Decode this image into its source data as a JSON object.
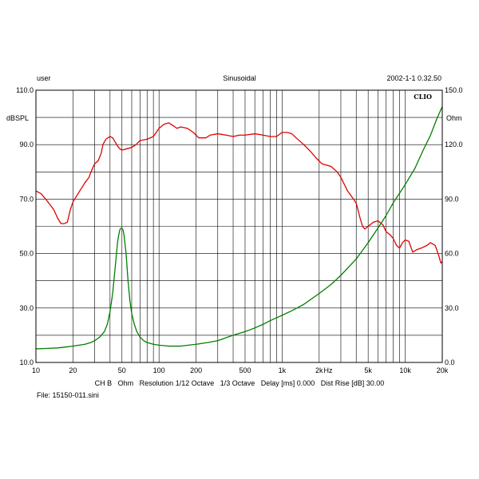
{
  "header": {
    "left": "user",
    "center": "Sinusoidal",
    "right": "2002-1-1 0.32.50",
    "brand": "CLIO"
  },
  "footer": {
    "settings": "CH B   Ohm   Resolution 1/12 Octave   1/3 Octave   Delay [ms] 0.000   Dist Rise [dB] 30.00",
    "file": "File: 15150-011.sini"
  },
  "chart_data": {
    "type": "line",
    "x_scale": "log",
    "xlim": [
      10,
      20000
    ],
    "grid": true,
    "x_tick_labels": [
      {
        "x": 10,
        "label": "10"
      },
      {
        "x": 20,
        "label": "20"
      },
      {
        "x": 50,
        "label": "50"
      },
      {
        "x": 100,
        "label": "100"
      },
      {
        "x": 200,
        "label": "200"
      },
      {
        "x": 500,
        "label": "500"
      },
      {
        "x": 1000,
        "label": "1k"
      },
      {
        "x": 2000,
        "label": "2k"
      },
      {
        "x": 5000,
        "label": "5k"
      },
      {
        "x": 10000,
        "label": "10k"
      },
      {
        "x": 20000,
        "label": "20k"
      }
    ],
    "x_unit": "Hz",
    "left_axis": {
      "label": "dBSPL",
      "ylim": [
        10,
        110
      ],
      "ticks": [
        {
          "v": 10,
          "label": "10.0"
        },
        {
          "v": 30,
          "label": "30.0"
        },
        {
          "v": 50,
          "label": "50.0"
        },
        {
          "v": 70,
          "label": "70.0"
        },
        {
          "v": 90,
          "label": "90.0"
        },
        {
          "v": 110,
          "label": "110.0"
        }
      ]
    },
    "right_axis": {
      "label": "Ohm",
      "ylim": [
        0,
        150
      ],
      "ticks": [
        {
          "v": 0,
          "label": "0.0"
        },
        {
          "v": 30,
          "label": "30.0"
        },
        {
          "v": 60,
          "label": "60.0"
        },
        {
          "v": 90,
          "label": "90.0"
        },
        {
          "v": 120,
          "label": "120.0"
        },
        {
          "v": 150,
          "label": "150.0"
        }
      ]
    },
    "series": [
      {
        "axis": "left",
        "color": "#e00000",
        "points": [
          [
            10,
            73
          ],
          [
            11,
            72
          ],
          [
            12,
            70
          ],
          [
            13,
            68
          ],
          [
            14,
            66
          ],
          [
            15,
            63
          ],
          [
            16,
            61
          ],
          [
            17,
            61
          ],
          [
            18,
            61.5
          ],
          [
            19,
            66
          ],
          [
            20,
            69
          ],
          [
            22,
            72
          ],
          [
            25,
            76
          ],
          [
            27,
            78
          ],
          [
            28,
            80
          ],
          [
            30,
            83
          ],
          [
            32,
            84
          ],
          [
            34,
            87
          ],
          [
            35,
            90
          ],
          [
            37,
            92
          ],
          [
            40,
            93
          ],
          [
            42,
            92.5
          ],
          [
            44,
            91
          ],
          [
            46,
            89.5
          ],
          [
            48,
            88.5
          ],
          [
            50,
            88
          ],
          [
            55,
            88.5
          ],
          [
            60,
            89
          ],
          [
            65,
            90
          ],
          [
            70,
            91.5
          ],
          [
            80,
            92
          ],
          [
            90,
            93
          ],
          [
            100,
            96
          ],
          [
            110,
            97.5
          ],
          [
            120,
            98
          ],
          [
            130,
            97
          ],
          [
            140,
            96
          ],
          [
            150,
            96.5
          ],
          [
            170,
            96
          ],
          [
            190,
            94.5
          ],
          [
            210,
            92.5
          ],
          [
            240,
            92.5
          ],
          [
            260,
            93.5
          ],
          [
            300,
            94
          ],
          [
            350,
            93.5
          ],
          [
            400,
            93
          ],
          [
            450,
            93.5
          ],
          [
            500,
            93.5
          ],
          [
            600,
            94
          ],
          [
            700,
            93.5
          ],
          [
            800,
            93
          ],
          [
            900,
            93
          ],
          [
            1000,
            94.5
          ],
          [
            1100,
            94.5
          ],
          [
            1200,
            94
          ],
          [
            1300,
            92.5
          ],
          [
            1500,
            90
          ],
          [
            1700,
            87.5
          ],
          [
            1900,
            85
          ],
          [
            2100,
            83
          ],
          [
            2500,
            82
          ],
          [
            2800,
            80
          ],
          [
            3000,
            78
          ],
          [
            3400,
            73
          ],
          [
            3800,
            70
          ],
          [
            4000,
            68.5
          ],
          [
            4300,
            63
          ],
          [
            4500,
            60
          ],
          [
            4700,
            59
          ],
          [
            5000,
            60
          ],
          [
            5500,
            61.5
          ],
          [
            6000,
            62
          ],
          [
            6600,
            60.5
          ],
          [
            7000,
            58
          ],
          [
            7500,
            57
          ],
          [
            8000,
            55.5
          ],
          [
            8500,
            53
          ],
          [
            9000,
            52
          ],
          [
            9500,
            54
          ],
          [
            10000,
            55
          ],
          [
            10700,
            54.5
          ],
          [
            11500,
            50.5
          ],
          [
            12500,
            51.5
          ],
          [
            13500,
            52
          ],
          [
            15000,
            53
          ],
          [
            16000,
            54
          ],
          [
            17500,
            53
          ],
          [
            18500,
            50
          ],
          [
            19500,
            46.5
          ],
          [
            20500,
            47.5
          ],
          [
            21500,
            45.5
          ],
          [
            23000,
            45.5
          ]
        ]
      },
      {
        "axis": "right",
        "color": "#008000",
        "points": [
          [
            10,
            7.5
          ],
          [
            12,
            7.7
          ],
          [
            15,
            8
          ],
          [
            18,
            8.6
          ],
          [
            20,
            9
          ],
          [
            25,
            10
          ],
          [
            28,
            11
          ],
          [
            30,
            12
          ],
          [
            33,
            14
          ],
          [
            36,
            17
          ],
          [
            38,
            21
          ],
          [
            40,
            28
          ],
          [
            42,
            38
          ],
          [
            44,
            52
          ],
          [
            46,
            66
          ],
          [
            47,
            70
          ],
          [
            48,
            73
          ],
          [
            49,
            74
          ],
          [
            50,
            74
          ],
          [
            51,
            73
          ],
          [
            52,
            70
          ],
          [
            54,
            60
          ],
          [
            56,
            45
          ],
          [
            58,
            34
          ],
          [
            60,
            27
          ],
          [
            63,
            21
          ],
          [
            66,
            17
          ],
          [
            70,
            14
          ],
          [
            75,
            12
          ],
          [
            80,
            11
          ],
          [
            90,
            10
          ],
          [
            100,
            9.5
          ],
          [
            120,
            9
          ],
          [
            150,
            9
          ],
          [
            200,
            10
          ],
          [
            250,
            11
          ],
          [
            300,
            12
          ],
          [
            400,
            15
          ],
          [
            500,
            17
          ],
          [
            600,
            19
          ],
          [
            700,
            21
          ],
          [
            800,
            23
          ],
          [
            1000,
            26
          ],
          [
            1200,
            28.5
          ],
          [
            1500,
            32
          ],
          [
            2000,
            38
          ],
          [
            2500,
            43
          ],
          [
            3000,
            48
          ],
          [
            4000,
            57
          ],
          [
            5000,
            66
          ],
          [
            6000,
            74
          ],
          [
            7000,
            81
          ],
          [
            8000,
            88
          ],
          [
            10000,
            98
          ],
          [
            12000,
            107
          ],
          [
            14000,
            117
          ],
          [
            16000,
            125
          ],
          [
            18000,
            134
          ],
          [
            20000,
            141
          ],
          [
            22000,
            146
          ],
          [
            23000,
            148
          ]
        ]
      }
    ]
  }
}
